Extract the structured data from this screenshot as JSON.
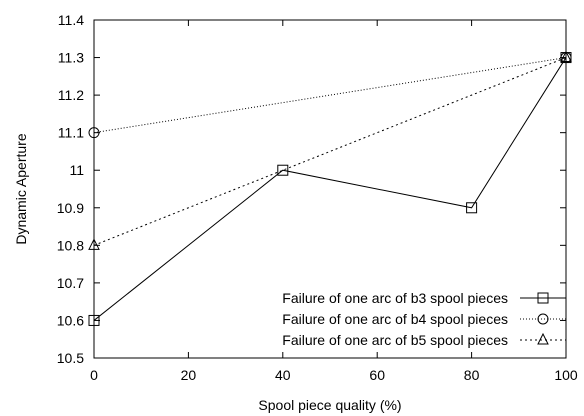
{
  "chart_data": {
    "type": "line",
    "title": "",
    "xlabel": "Spool piece quality (%)",
    "ylabel": "Dynamic Aperture",
    "xlim": [
      0,
      100
    ],
    "ylim": [
      10.5,
      11.4
    ],
    "x_ticks": [
      "0",
      "20",
      "40",
      "60",
      "80",
      "100"
    ],
    "y_ticks": [
      "10.5",
      "10.6",
      "10.7",
      "10.8",
      "10.9",
      "11",
      "11.1",
      "11.2",
      "11.3",
      "11.4"
    ],
    "grid": false,
    "legend_position": "bottom-right",
    "series": [
      {
        "name": "Failure of one arc of b3 spool pieces",
        "marker": "square",
        "line_style": "solid",
        "x": [
          0,
          40,
          80,
          100
        ],
        "y": [
          10.6,
          11.0,
          10.9,
          11.3
        ]
      },
      {
        "name": "Failure of one arc of b4 spool pieces",
        "marker": "circle",
        "line_style": "dotted",
        "x": [
          0,
          100
        ],
        "y": [
          11.1,
          11.3
        ]
      },
      {
        "name": "Failure of one arc of b5 spool pieces",
        "marker": "triangle",
        "line_style": "dashed",
        "x": [
          0,
          100
        ],
        "y": [
          10.8,
          11.3
        ]
      }
    ]
  }
}
